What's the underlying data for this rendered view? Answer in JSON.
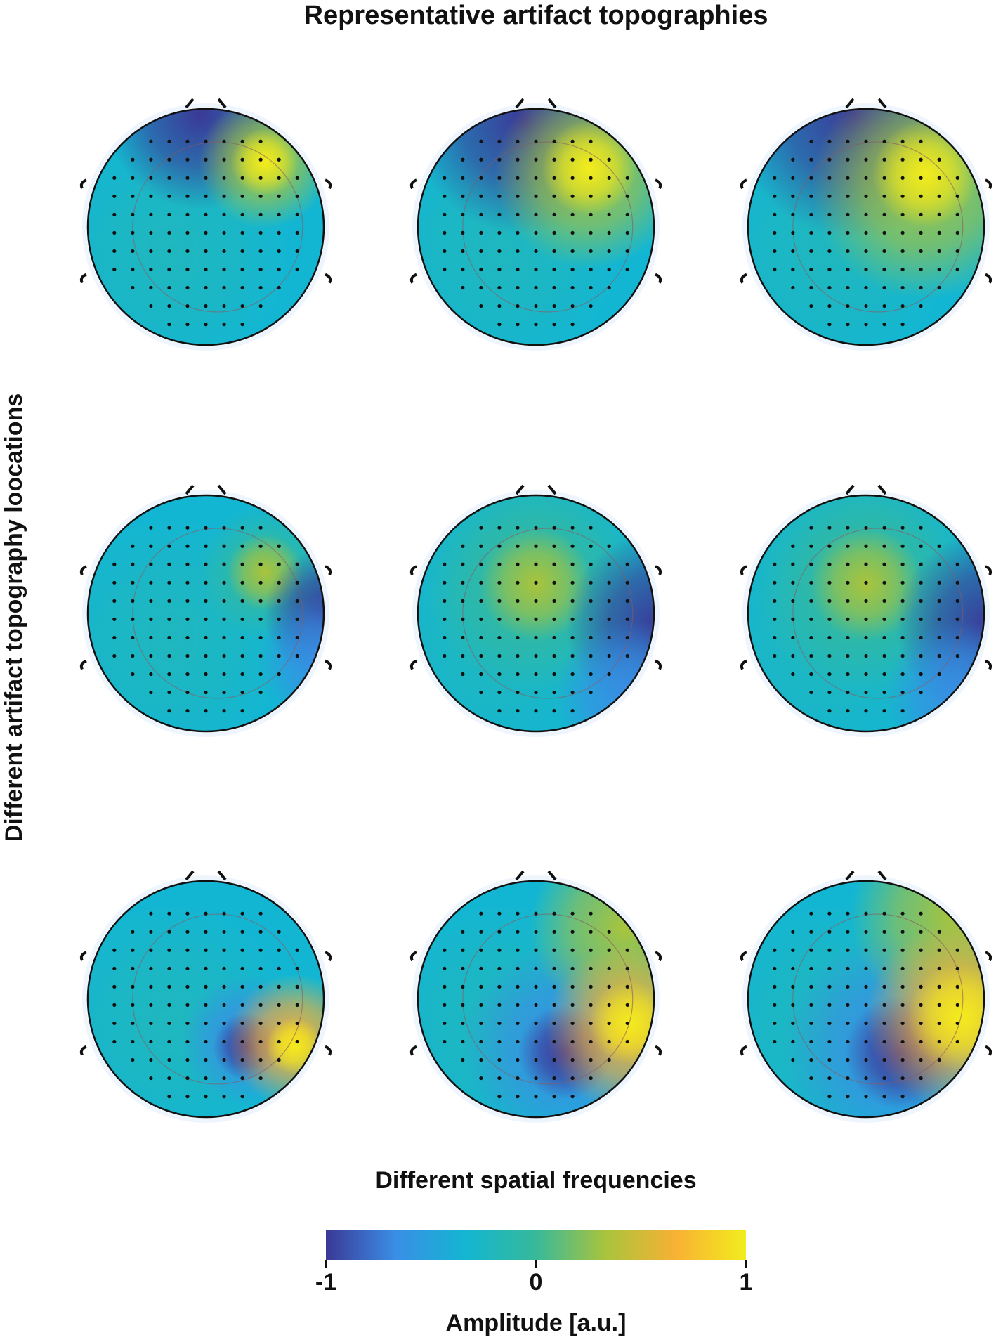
{
  "chart_data": {
    "type": "topography",
    "title": "Representative artifact topographies",
    "ylabel": "Different artifact topography loocations",
    "xlabel": "Different spatial frequencies",
    "colorbar_label": "Amplitude [a.u.]",
    "clim": [
      -1,
      1
    ],
    "colorbar_ticks": [
      -1,
      0,
      1
    ],
    "colormap": [
      "#3b3996",
      "#3a8ee6",
      "#13b6d2",
      "#37b99a",
      "#a9c43c",
      "#f8b134",
      "#f2ec1d"
    ]
  }
}
